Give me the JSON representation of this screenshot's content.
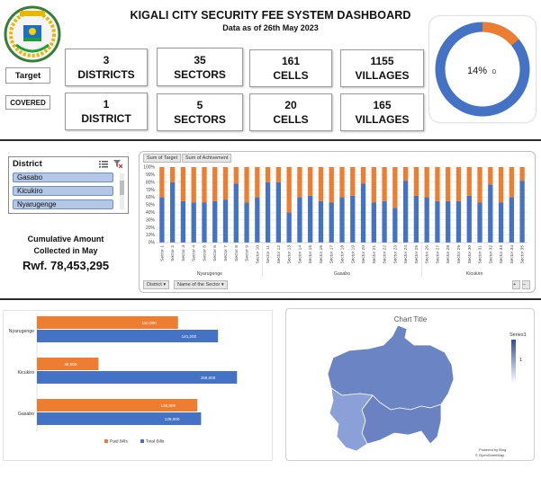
{
  "header": {
    "title": "KIGALI CITY SECURITY FEE SYSTEM DASHBOARD",
    "subtitle": "Data as of 26th May 2023",
    "logo_text": "REPUBLIC OF RWANDA"
  },
  "rows": {
    "target_label": "Target",
    "covered_label": "COVERED"
  },
  "cards": {
    "target": [
      {
        "num": "3",
        "label": "DISTRICTS"
      },
      {
        "num": "35",
        "label": "SECTORS"
      },
      {
        "num": "161",
        "label": "CELLS"
      },
      {
        "num": "1155",
        "label": "VILLAGES"
      }
    ],
    "covered": [
      {
        "num": "1",
        "label": "DISTRICT"
      },
      {
        "num": "5",
        "label": "SECTORS"
      },
      {
        "num": "20",
        "label": "CELLS"
      },
      {
        "num": "165",
        "label": "VILLAGES"
      }
    ]
  },
  "donut": {
    "label": "14%",
    "suffix": "D",
    "fraction": 0.14,
    "colors": {
      "filled": "#ed7d31",
      "rest": "#4472c4"
    }
  },
  "slicer": {
    "title": "District",
    "items": [
      "Gasabo",
      "Kicukiro",
      "Nyarugenge"
    ]
  },
  "cumulative": {
    "line1": "Cumulative  Amount",
    "line2": "Collected  in May",
    "value": "Rwf. 78,453,295"
  },
  "pivot": {
    "buttons": [
      "Sum of Target",
      "Sum of Achivement"
    ],
    "filters": [
      "District",
      "Name of the Sector"
    ]
  },
  "chart_data": [
    {
      "type": "bar",
      "stacked": "percent",
      "series": [
        {
          "name": "Sum of Achivement",
          "color": "#4472c4",
          "values": [
            60,
            80,
            55,
            53,
            53,
            55,
            57,
            78,
            53,
            60,
            80,
            80,
            40,
            60,
            62,
            55,
            53,
            60,
            62,
            78,
            53,
            55,
            46,
            82,
            62,
            60,
            55,
            55,
            55,
            62,
            53,
            77,
            53,
            60,
            82
          ]
        },
        {
          "name": "Sum of Target",
          "color": "#ed7d31",
          "values": [
            40,
            20,
            45,
            47,
            47,
            45,
            43,
            22,
            47,
            40,
            20,
            20,
            60,
            40,
            38,
            45,
            47,
            40,
            38,
            22,
            47,
            45,
            54,
            18,
            38,
            40,
            45,
            45,
            45,
            38,
            47,
            23,
            47,
            40,
            18
          ]
        }
      ],
      "categories": [
        "Sector 1",
        "Sector 2",
        "Sector 3",
        "Sector 4",
        "Sector 5",
        "Sector 6",
        "Sector 7",
        "Sector 8",
        "Sector 9",
        "Sector 10",
        "Sector 11",
        "Sector 12",
        "Sector 13",
        "Sector 14",
        "Sector 15",
        "Sector 16",
        "Sector 17",
        "Sector 18",
        "Sector 19",
        "Sector 20",
        "Sector 21",
        "Sector 22",
        "Sector 23",
        "Sector 24",
        "Sector 25",
        "Sector 26",
        "Sector 27",
        "Sector 28",
        "Sector 29",
        "Sector 30",
        "Sector 31",
        "Sector 32",
        "Sector 33",
        "Sector 34",
        "Sector 35"
      ],
      "groups": [
        {
          "name": "Nyarugenge",
          "count": 10
        },
        {
          "name": "Gasabo",
          "count": 15
        },
        {
          "name": "Kicukiro",
          "count": 10
        }
      ],
      "ylim": [
        0,
        100
      ],
      "yticks": [
        "0%",
        "10%",
        "20%",
        "30%",
        "40%",
        "50%",
        "60%",
        "70%",
        "80%",
        "90%",
        "100%"
      ]
    },
    {
      "type": "bar",
      "orientation": "horizontal",
      "categories": [
        "Nyarugenge",
        "Kicukiro",
        "Gasabo"
      ],
      "series": [
        {
          "name": "Paid Bills",
          "color": "#ed7d31",
          "values": [
            110000,
            48000,
            125000
          ],
          "labels": [
            "110,000",
            "48,000",
            "125,000"
          ]
        },
        {
          "name": "Total Bills",
          "color": "#4472c4",
          "values": [
            141200,
            156000,
            128000
          ],
          "labels": [
            "141,200",
            "156,000",
            "128,000"
          ]
        }
      ],
      "xlim": [
        0,
        160000
      ]
    }
  ],
  "map": {
    "title": "Chart Title",
    "legend_title": "Series1",
    "legend_value": "1",
    "credit_line1": "Powered by Bing",
    "credit_line2": "© OpenStreetMap"
  }
}
